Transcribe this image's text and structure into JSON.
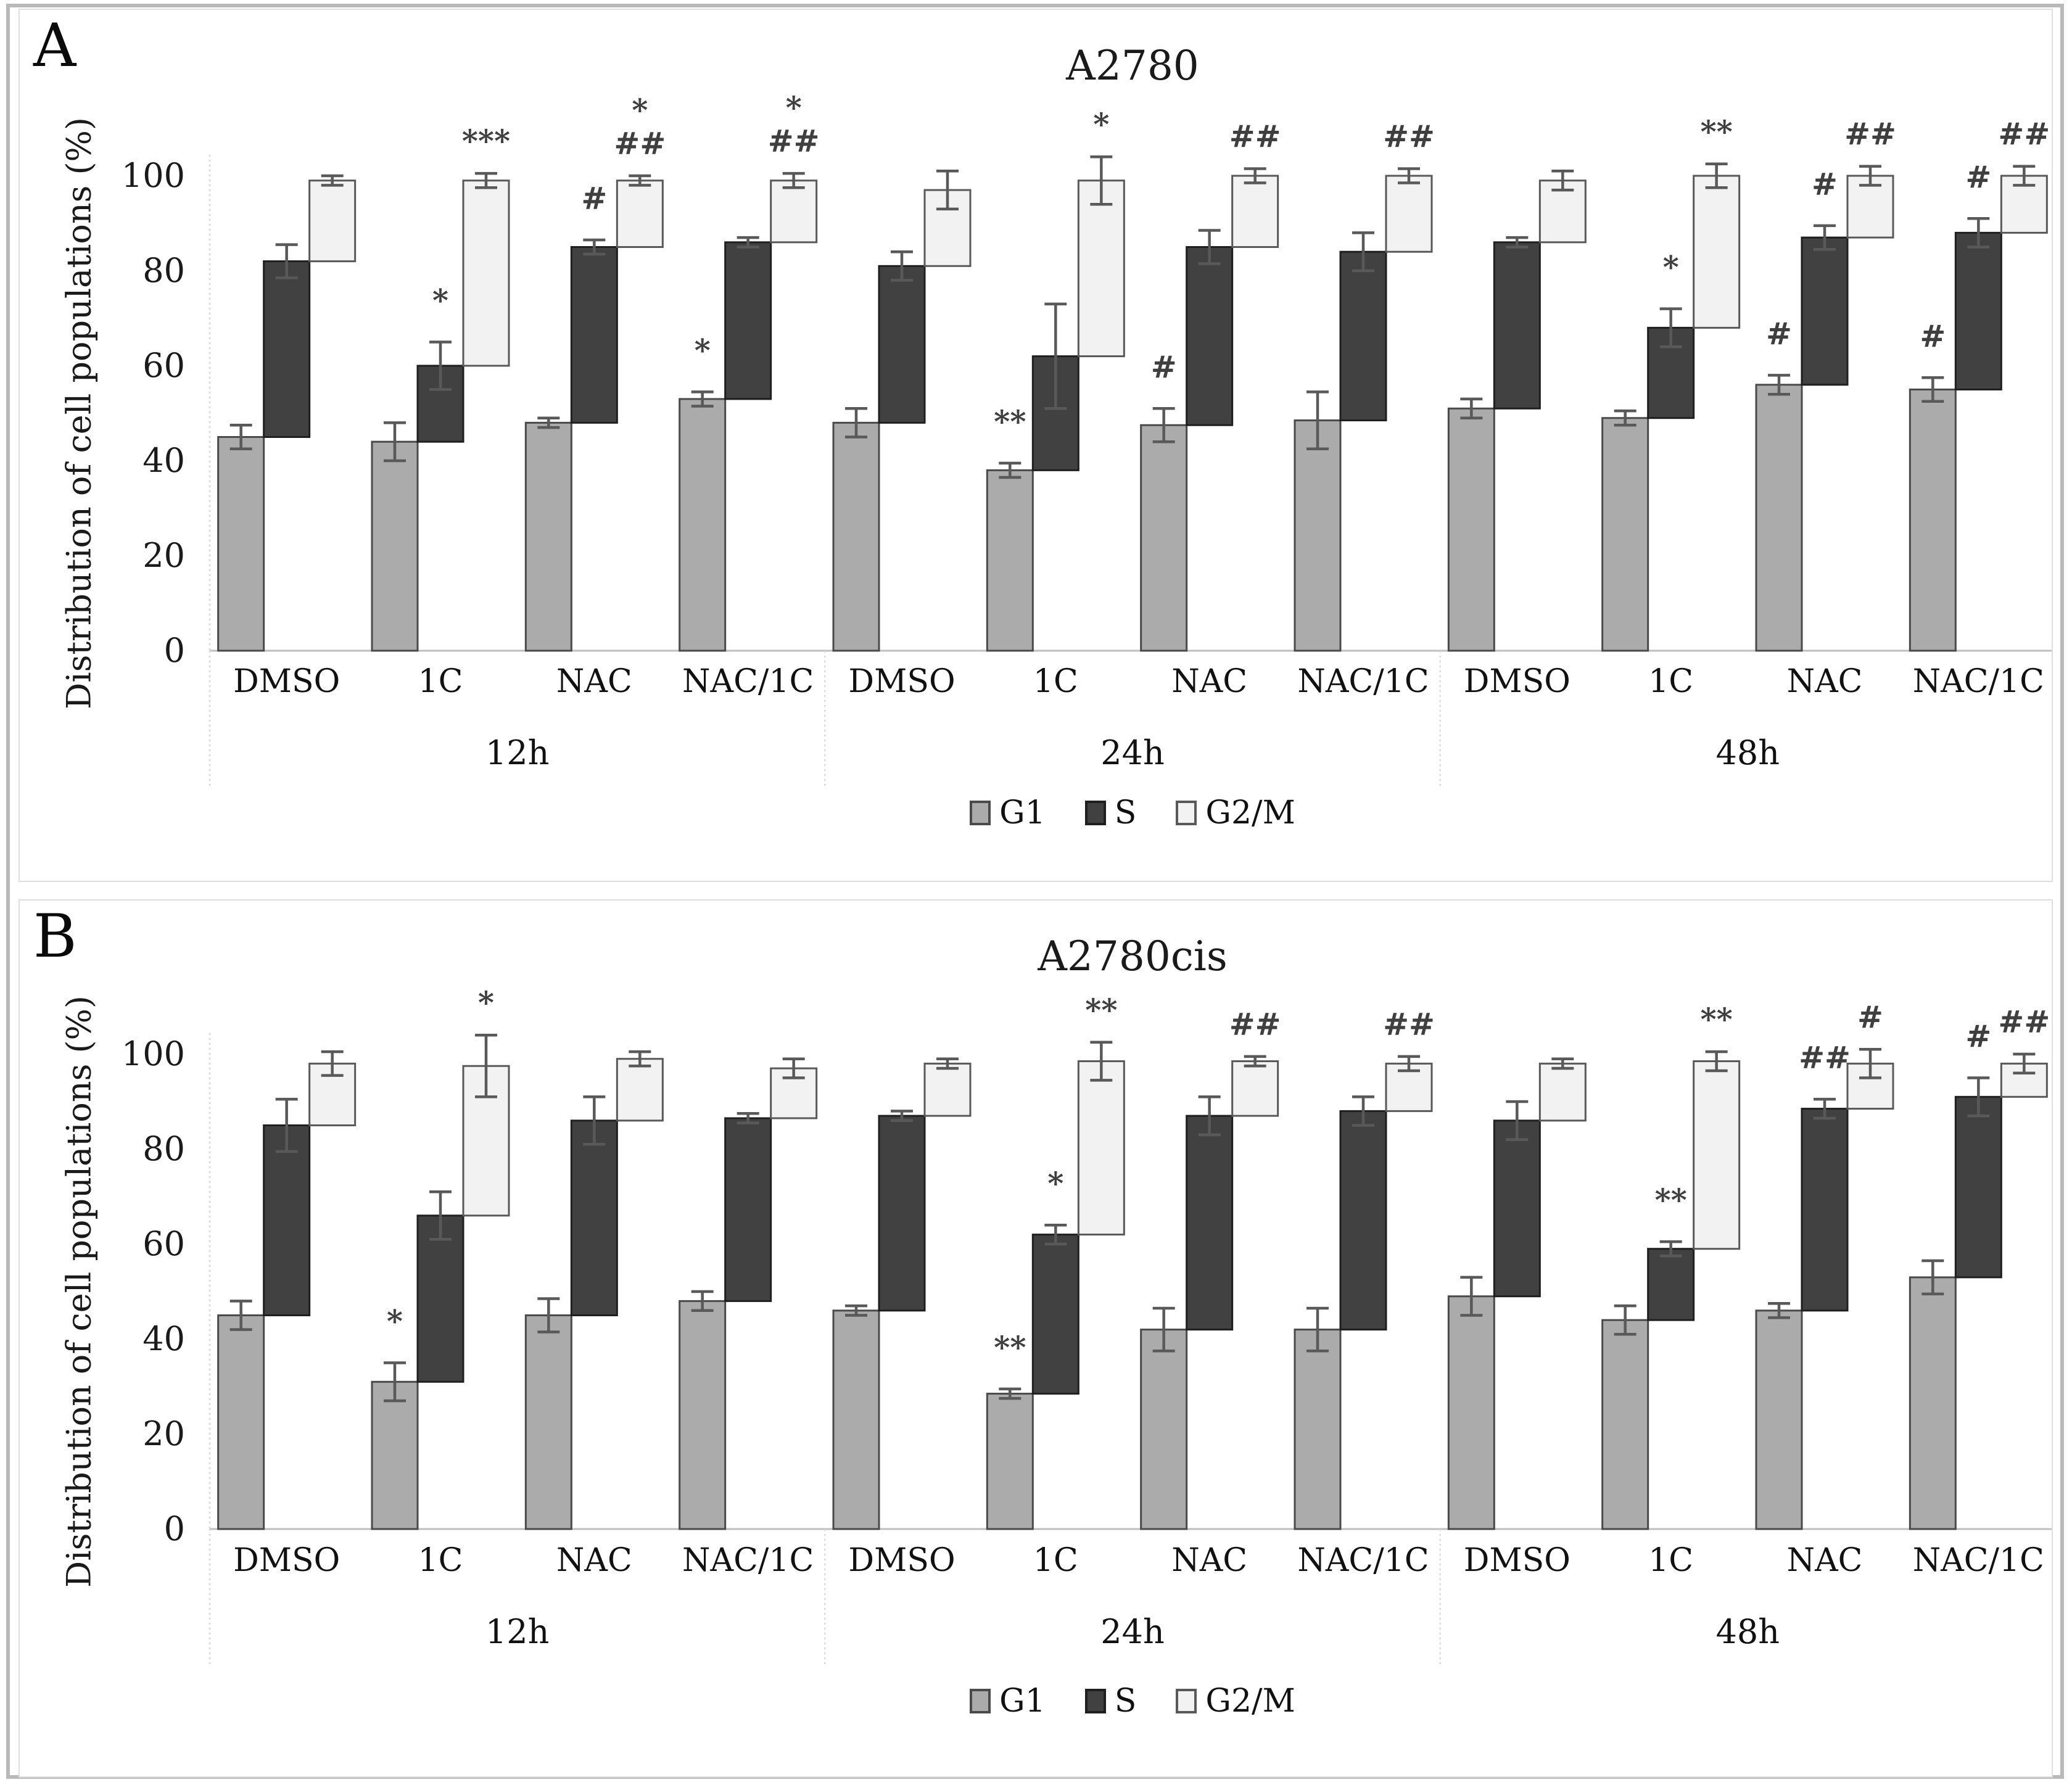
{
  "figure": {
    "type": "two-panel cascading stacked bar chart",
    "panel_a_label": "A",
    "panel_b_label": "B"
  },
  "legend": [
    {
      "label": "G1",
      "color": "#ababab",
      "border": "#4a4a4a"
    },
    {
      "label": "S",
      "color": "#414141",
      "border": "#1f1f1f"
    },
    {
      "label": "G2/M",
      "color": "#f2f2f2",
      "border": "#595959"
    }
  ],
  "colors": {
    "axis_line": "#bfbfbf",
    "separator": "#d9d9d9",
    "error_bar": "#595959",
    "marker_text": "#3f3f3f",
    "tick_text": "#1a1a1a",
    "bar_stroke_g1": "#4a4a4a",
    "bar_stroke_s": "#1f1f1f",
    "bar_stroke_g2m": "#595959"
  },
  "chart_data": [
    {
      "type": "bar",
      "variant": "cascading-stacked",
      "panel_label": "A",
      "title": "A2780",
      "ylabel": "Distribution of cell populations (%)",
      "ylim": [
        0,
        100
      ],
      "yticks": [
        0,
        20,
        40,
        60,
        80,
        100
      ],
      "series_names": [
        "G1",
        "S",
        "G2/M"
      ],
      "note": "values are cumulative tops (%); marker lines top-to-bottom separated by |",
      "groups": [
        {
          "label": "12h",
          "treatments": [
            {
              "label": "DMSO",
              "phases": [
                {
                  "name": "G1",
                  "value": 45,
                  "err": 2.5,
                  "marker": ""
                },
                {
                  "name": "S",
                  "value": 82,
                  "err": 3.5,
                  "marker": ""
                },
                {
                  "name": "G2/M",
                  "value": 99,
                  "err": 1,
                  "marker": ""
                }
              ]
            },
            {
              "label": "1C",
              "phases": [
                {
                  "name": "G1",
                  "value": 44,
                  "err": 4,
                  "marker": ""
                },
                {
                  "name": "S",
                  "value": 60,
                  "err": 5,
                  "marker": "*"
                },
                {
                  "name": "G2/M",
                  "value": 99,
                  "err": 1.5,
                  "marker": "***"
                }
              ]
            },
            {
              "label": "NAC",
              "phases": [
                {
                  "name": "G1",
                  "value": 48,
                  "err": 1,
                  "marker": ""
                },
                {
                  "name": "S",
                  "value": 85,
                  "err": 1.5,
                  "marker": "#"
                },
                {
                  "name": "G2/M",
                  "value": 99,
                  "err": 1,
                  "marker": "*|##"
                }
              ]
            },
            {
              "label": "NAC/1C",
              "phases": [
                {
                  "name": "G1",
                  "value": 53,
                  "err": 1.5,
                  "marker": "*"
                },
                {
                  "name": "S",
                  "value": 86,
                  "err": 1,
                  "marker": ""
                },
                {
                  "name": "G2/M",
                  "value": 99,
                  "err": 1.5,
                  "marker": "*|##"
                }
              ]
            }
          ]
        },
        {
          "label": "24h",
          "treatments": [
            {
              "label": "DMSO",
              "phases": [
                {
                  "name": "G1",
                  "value": 48,
                  "err": 3,
                  "marker": ""
                },
                {
                  "name": "S",
                  "value": 81,
                  "err": 3,
                  "marker": ""
                },
                {
                  "name": "G2/M",
                  "value": 97,
                  "err": 4,
                  "marker": ""
                }
              ]
            },
            {
              "label": "1C",
              "phases": [
                {
                  "name": "G1",
                  "value": 38,
                  "err": 1.5,
                  "marker": "**"
                },
                {
                  "name": "S",
                  "value": 62,
                  "err": 11,
                  "marker": ""
                },
                {
                  "name": "G2/M",
                  "value": 99,
                  "err": 5,
                  "marker": "*"
                }
              ]
            },
            {
              "label": "NAC",
              "phases": [
                {
                  "name": "G1",
                  "value": 47.5,
                  "err": 3.5,
                  "marker": "#"
                },
                {
                  "name": "S",
                  "value": 85,
                  "err": 3.5,
                  "marker": ""
                },
                {
                  "name": "G2/M",
                  "value": 100,
                  "err": 1.5,
                  "marker": "##"
                }
              ]
            },
            {
              "label": "NAC/1C",
              "phases": [
                {
                  "name": "G1",
                  "value": 48.5,
                  "err": 6,
                  "marker": ""
                },
                {
                  "name": "S",
                  "value": 84,
                  "err": 4,
                  "marker": ""
                },
                {
                  "name": "G2/M",
                  "value": 100,
                  "err": 1.5,
                  "marker": "##"
                }
              ]
            }
          ]
        },
        {
          "label": "48h",
          "treatments": [
            {
              "label": "DMSO",
              "phases": [
                {
                  "name": "G1",
                  "value": 51,
                  "err": 2,
                  "marker": ""
                },
                {
                  "name": "S",
                  "value": 86,
                  "err": 1,
                  "marker": ""
                },
                {
                  "name": "G2/M",
                  "value": 99,
                  "err": 2,
                  "marker": ""
                }
              ]
            },
            {
              "label": "1C",
              "phases": [
                {
                  "name": "G1",
                  "value": 49,
                  "err": 1.5,
                  "marker": ""
                },
                {
                  "name": "S",
                  "value": 68,
                  "err": 4,
                  "marker": "*"
                },
                {
                  "name": "G2/M",
                  "value": 100,
                  "err": 2.5,
                  "marker": "**"
                }
              ]
            },
            {
              "label": "NAC",
              "phases": [
                {
                  "name": "G1",
                  "value": 56,
                  "err": 2,
                  "marker": "#"
                },
                {
                  "name": "S",
                  "value": 87,
                  "err": 2.5,
                  "marker": "#"
                },
                {
                  "name": "G2/M",
                  "value": 100,
                  "err": 2,
                  "marker": "##"
                }
              ]
            },
            {
              "label": "NAC/1C",
              "phases": [
                {
                  "name": "G1",
                  "value": 55,
                  "err": 2.5,
                  "marker": "#"
                },
                {
                  "name": "S",
                  "value": 88,
                  "err": 3,
                  "marker": "#"
                },
                {
                  "name": "G2/M",
                  "value": 100,
                  "err": 2,
                  "marker": "##"
                }
              ]
            }
          ]
        }
      ]
    },
    {
      "type": "bar",
      "variant": "cascading-stacked",
      "panel_label": "B",
      "title": "A2780cis",
      "ylabel": "Distribution of cell populations (%)",
      "ylim": [
        0,
        100
      ],
      "yticks": [
        0,
        20,
        40,
        60,
        80,
        100
      ],
      "series_names": [
        "G1",
        "S",
        "G2/M"
      ],
      "groups": [
        {
          "label": "12h",
          "treatments": [
            {
              "label": "DMSO",
              "phases": [
                {
                  "name": "G1",
                  "value": 45,
                  "err": 3,
                  "marker": ""
                },
                {
                  "name": "S",
                  "value": 85,
                  "err": 5.5,
                  "marker": ""
                },
                {
                  "name": "G2/M",
                  "value": 98,
                  "err": 2.5,
                  "marker": ""
                }
              ]
            },
            {
              "label": "1C",
              "phases": [
                {
                  "name": "G1",
                  "value": 31,
                  "err": 4,
                  "marker": "*"
                },
                {
                  "name": "S",
                  "value": 66,
                  "err": 5,
                  "marker": ""
                },
                {
                  "name": "G2/M",
                  "value": 97.5,
                  "err": 6.5,
                  "marker": "*"
                }
              ]
            },
            {
              "label": "NAC",
              "phases": [
                {
                  "name": "G1",
                  "value": 45,
                  "err": 3.5,
                  "marker": ""
                },
                {
                  "name": "S",
                  "value": 86,
                  "err": 5,
                  "marker": ""
                },
                {
                  "name": "G2/M",
                  "value": 99,
                  "err": 1.5,
                  "marker": ""
                }
              ]
            },
            {
              "label": "NAC/1C",
              "phases": [
                {
                  "name": "G1",
                  "value": 48,
                  "err": 2,
                  "marker": ""
                },
                {
                  "name": "S",
                  "value": 86.5,
                  "err": 1,
                  "marker": ""
                },
                {
                  "name": "G2/M",
                  "value": 97,
                  "err": 2,
                  "marker": ""
                }
              ]
            }
          ]
        },
        {
          "label": "24h",
          "treatments": [
            {
              "label": "DMSO",
              "phases": [
                {
                  "name": "G1",
                  "value": 46,
                  "err": 1,
                  "marker": ""
                },
                {
                  "name": "S",
                  "value": 87,
                  "err": 1,
                  "marker": ""
                },
                {
                  "name": "G2/M",
                  "value": 98,
                  "err": 1,
                  "marker": ""
                }
              ]
            },
            {
              "label": "1C",
              "phases": [
                {
                  "name": "G1",
                  "value": 28.5,
                  "err": 1,
                  "marker": "**"
                },
                {
                  "name": "S",
                  "value": 62,
                  "err": 2,
                  "marker": "*"
                },
                {
                  "name": "G2/M",
                  "value": 98.5,
                  "err": 4,
                  "marker": "**"
                }
              ]
            },
            {
              "label": "NAC",
              "phases": [
                {
                  "name": "G1",
                  "value": 42,
                  "err": 4.5,
                  "marker": ""
                },
                {
                  "name": "S",
                  "value": 87,
                  "err": 4,
                  "marker": ""
                },
                {
                  "name": "G2/M",
                  "value": 98.5,
                  "err": 1,
                  "marker": "##"
                }
              ]
            },
            {
              "label": "NAC/1C",
              "phases": [
                {
                  "name": "G1",
                  "value": 42,
                  "err": 4.5,
                  "marker": ""
                },
                {
                  "name": "S",
                  "value": 88,
                  "err": 3,
                  "marker": ""
                },
                {
                  "name": "G2/M",
                  "value": 98,
                  "err": 1.5,
                  "marker": "##"
                }
              ]
            }
          ]
        },
        {
          "label": "48h",
          "treatments": [
            {
              "label": "DMSO",
              "phases": [
                {
                  "name": "G1",
                  "value": 49,
                  "err": 4,
                  "marker": ""
                },
                {
                  "name": "S",
                  "value": 86,
                  "err": 4,
                  "marker": ""
                },
                {
                  "name": "G2/M",
                  "value": 98,
                  "err": 1,
                  "marker": ""
                }
              ]
            },
            {
              "label": "1C",
              "phases": [
                {
                  "name": "G1",
                  "value": 44,
                  "err": 3,
                  "marker": ""
                },
                {
                  "name": "S",
                  "value": 59,
                  "err": 1.5,
                  "marker": "**"
                },
                {
                  "name": "G2/M",
                  "value": 98.5,
                  "err": 2,
                  "marker": "**"
                }
              ]
            },
            {
              "label": "NAC",
              "phases": [
                {
                  "name": "G1",
                  "value": 46,
                  "err": 1.5,
                  "marker": ""
                },
                {
                  "name": "S",
                  "value": 88.5,
                  "err": 2,
                  "marker": "##"
                },
                {
                  "name": "G2/M",
                  "value": 98,
                  "err": 3,
                  "marker": "#"
                }
              ]
            },
            {
              "label": "NAC/1C",
              "phases": [
                {
                  "name": "G1",
                  "value": 53,
                  "err": 3.5,
                  "marker": ""
                },
                {
                  "name": "S",
                  "value": 91,
                  "err": 4,
                  "marker": "#"
                },
                {
                  "name": "G2/M",
                  "value": 98,
                  "err": 2,
                  "marker": "##"
                }
              ]
            }
          ]
        }
      ]
    }
  ]
}
